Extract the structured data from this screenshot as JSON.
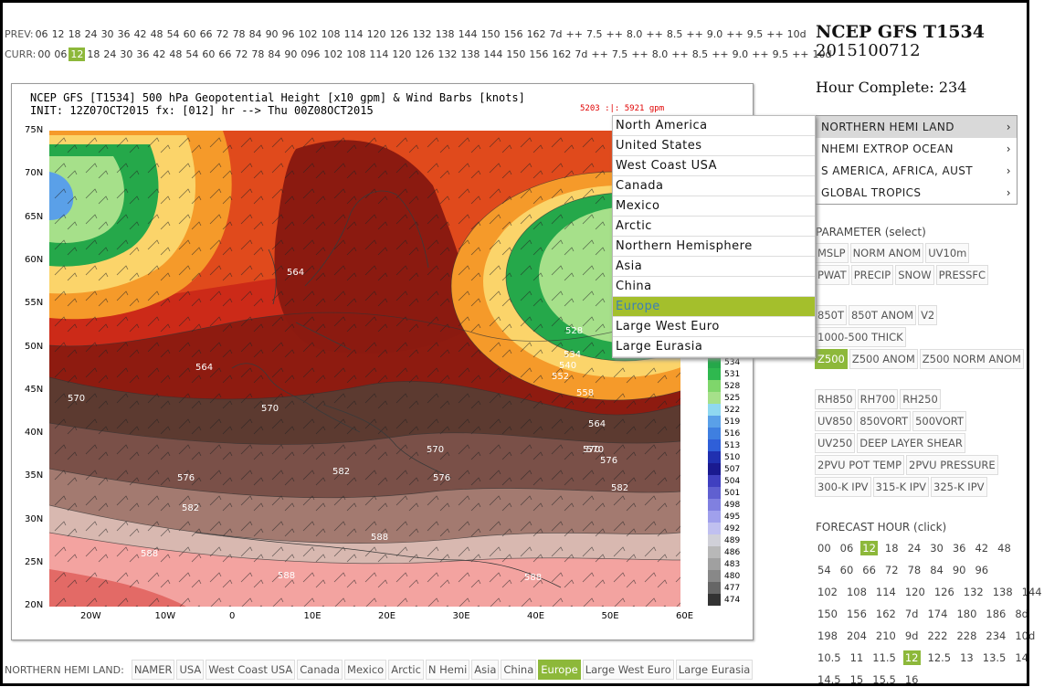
{
  "prev_row": {
    "label": "PREV:",
    "hours": [
      "06",
      "12",
      "18",
      "24",
      "30",
      "36",
      "42",
      "48",
      "54",
      "60",
      "66",
      "72",
      "78",
      "84",
      "90",
      "96",
      "102",
      "108",
      "114",
      "120",
      "126",
      "132",
      "138",
      "144",
      "150",
      "156",
      "162",
      "7d",
      "++",
      "7.5",
      "++",
      "8.0",
      "++",
      "8.5",
      "++",
      "9.0",
      "++",
      "9.5",
      "++",
      "10d"
    ]
  },
  "curr_row": {
    "label": "CURR:",
    "selected": "12",
    "hours": [
      "00",
      "06",
      "12",
      "18",
      "24",
      "30",
      "36",
      "42",
      "48",
      "54",
      "60",
      "66",
      "72",
      "78",
      "84",
      "90",
      "096",
      "102",
      "108",
      "114",
      "120",
      "126",
      "132",
      "138",
      "144",
      "150",
      "156",
      "162",
      "7d",
      "++",
      "7.5",
      "++",
      "8.0",
      "++",
      "8.5",
      "++",
      "9.0",
      "++",
      "9.5",
      "++",
      "10d"
    ]
  },
  "map": {
    "title_line1": "NCEP GFS [T1534] 500 hPa Geopotential Height [x10 gpm] & Wind Barbs [knots]",
    "title_line2": "INIT: 12Z07OCT2015 fx: [012] hr --> Thu 00Z08OCT2015",
    "range_text": "5203 :|: 5921 gpm",
    "lat_labels": [
      "75N",
      "70N",
      "65N",
      "60N",
      "55N",
      "50N",
      "45N",
      "40N",
      "35N",
      "30N",
      "25N",
      "20N"
    ],
    "lon_labels": [
      "20W",
      "10W",
      "0",
      "10E",
      "20E",
      "30E",
      "40E",
      "50E",
      "60E"
    ],
    "contour_labels": [
      "564",
      "564",
      "570",
      "570",
      "570",
      "570",
      "576",
      "576",
      "582",
      "582",
      "582",
      "588",
      "588",
      "588",
      "588",
      "528",
      "534",
      "540",
      "552",
      "558",
      "564",
      "570",
      "576"
    ],
    "legend_values": [
      "534",
      "531",
      "528",
      "525",
      "522",
      "519",
      "516",
      "513",
      "510",
      "507",
      "504",
      "501",
      "498",
      "495",
      "492",
      "489",
      "486",
      "483",
      "480",
      "477",
      "474"
    ],
    "colors": {
      "deep_red": "#8b1a10",
      "red": "#d22a1a",
      "brown": "#5c3a30",
      "pink": "#f3a3a0",
      "green": "#25a84a",
      "orange": "#f59a2a"
    }
  },
  "dropdown": {
    "items": [
      "North America",
      "United States",
      "West Coast USA",
      "Canada",
      "Mexico",
      "Arctic",
      "Northern Hemisphere",
      "Asia",
      "China",
      "Europe",
      "Large West Euro",
      "Large Eurasia"
    ],
    "selected": "Europe"
  },
  "header": {
    "model": "NCEP GFS T1534",
    "run": "2015100712",
    "hour_complete": "Hour Complete: 234"
  },
  "regions": [
    {
      "label": "NORTHERN HEMI LAND",
      "arrow": "›"
    },
    {
      "label": "NHEMI EXTROP OCEAN",
      "arrow": "›"
    },
    {
      "label": "S AMERICA, AFRICA, AUST",
      "arrow": "›"
    },
    {
      "label": "GLOBAL TROPICS",
      "arrow": "›"
    }
  ],
  "parameter": {
    "heading": "PARAMETER (select)",
    "rows": [
      [
        "MSLP",
        "NORM ANOM",
        "UV10m"
      ],
      [
        "PWAT",
        "PRECIP",
        "SNOW",
        "PRESSFC"
      ],
      [
        "850T",
        "850T ANOM",
        "V2"
      ],
      [
        "1000-500 THICK"
      ],
      [
        "Z500",
        "Z500 ANOM",
        "Z500 NORM ANOM"
      ],
      [
        "RH850",
        "RH700",
        "RH250"
      ],
      [
        "UV850",
        "850VORT",
        "500VORT"
      ],
      [
        "UV250",
        "DEEP LAYER SHEAR"
      ],
      [
        "2PVU POT TEMP",
        "2PVU PRESSURE"
      ],
      [
        "300-K IPV",
        "315-K IPV",
        "325-K IPV"
      ]
    ],
    "selected": "Z500"
  },
  "forecast_hour": {
    "heading": "FORECAST HOUR (click)",
    "rows": [
      [
        "00",
        "06",
        "12",
        "18",
        "24",
        "30",
        "36",
        "42",
        "48"
      ],
      [
        "54",
        "60",
        "66",
        "72",
        "78",
        "84",
        "90",
        "96"
      ],
      [
        "102",
        "108",
        "114",
        "120",
        "126",
        "132",
        "138",
        "144"
      ],
      [
        "150",
        "156",
        "162",
        "7d",
        "174",
        "180",
        "186",
        "8d"
      ],
      [
        "198",
        "204",
        "210",
        "9d",
        "222",
        "228",
        "234",
        "10d"
      ],
      [
        "10.5",
        "11",
        "11.5",
        "12",
        "12.5",
        "13",
        "13.5",
        "14"
      ],
      [
        "14.5",
        "15",
        "15.5",
        "16"
      ]
    ],
    "selected": "12"
  },
  "bottom_bar": {
    "label": "NORTHERN HEMI LAND:",
    "items": [
      "NAMER",
      "USA",
      "West Coast USA",
      "Canada",
      "Mexico",
      "Arctic",
      "N Hemi",
      "Asia",
      "China",
      "Europe",
      "Large West Euro",
      "Large Eurasia"
    ],
    "selected": "Europe"
  }
}
